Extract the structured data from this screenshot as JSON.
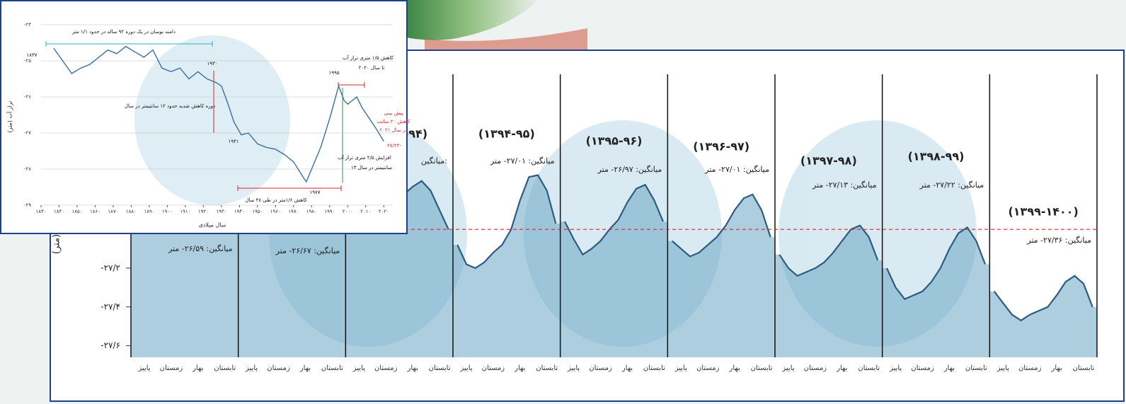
{
  "chart_data": [
    {
      "type": "line",
      "y_label": "(متر)",
      "ylim": [
        -27.66,
        -26.2
      ],
      "yticks": [
        {
          "value": -27.2,
          "label": "-۲۷/۲"
        },
        {
          "value": -27.4,
          "label": "-۲۷/۴"
        },
        {
          "value": -27.6,
          "label": "-۲۷/۶"
        }
      ],
      "reference_line": -27.0,
      "reference_color": "#d9262b",
      "color": "#2e5b80",
      "fill_color": "#6aa6c4",
      "categories": [
        "پاییز",
        "زمستان",
        "بهار",
        "تابستان",
        "پاییز",
        "زمستان",
        "بهار",
        "تابستان",
        "پاییز",
        "زمستان",
        "بهار",
        "تابستان",
        "پاییز",
        "زمستان",
        "بهار",
        "تابستان",
        "پاییز",
        "زمستان",
        "بهار",
        "تابستان",
        "پاییز",
        "زمستان",
        "بهار",
        "تابستان",
        "پاییز",
        "زمستان",
        "بهار",
        "تابستان",
        "پاییز",
        "زمستان",
        "بهار",
        "تابستان",
        "پاییز",
        "زمستان",
        "بهار",
        "تابستان"
      ],
      "panels": [
        {
          "title": null,
          "average_label": "میانگین: ۲۶/۵۹- متر",
          "values": [
            -26.62,
            -26.66,
            -26.7,
            -26.68,
            -26.62,
            -26.58,
            -26.52,
            -26.47,
            -26.45,
            -26.5,
            -26.58,
            -26.64
          ]
        },
        {
          "title": null,
          "average_label": "میانگین: ۲۶/۶۷- متر",
          "values": [
            -26.68,
            -26.74,
            -26.78,
            -26.76,
            -26.72,
            -26.66,
            -26.6,
            -26.56,
            -26.55,
            -26.6,
            -26.66,
            -26.72
          ]
        },
        {
          "title": "(۱۳۹۳-۹۴)",
          "average_label": "میانگین:",
          "values": [
            -26.95,
            -27.0,
            -27.02,
            -26.98,
            -26.92,
            -26.86,
            -26.82,
            -26.78,
            -26.75,
            -26.8,
            -26.9,
            -27.0
          ]
        },
        {
          "title": "(۱۳۹۴-۹۵)",
          "average_label": "میانگین: ۲۷/۰۱- متر",
          "values": [
            -27.08,
            -27.18,
            -27.2,
            -27.17,
            -27.12,
            -27.08,
            -27.0,
            -26.85,
            -26.73,
            -26.72,
            -26.8,
            -26.97
          ]
        },
        {
          "title": "(۱۳۹۵-۹۶)",
          "average_label": "میانگین: ۲۶/۹۷- متر",
          "values": [
            -26.96,
            -27.05,
            -27.13,
            -27.1,
            -27.06,
            -27.0,
            -26.95,
            -26.86,
            -26.79,
            -26.77,
            -26.85,
            -26.96
          ]
        },
        {
          "title": "(۱۳۹۶-۹۷)",
          "average_label": "میانگین: ۲۷/۰۱- متر",
          "values": [
            -27.06,
            -27.1,
            -27.14,
            -27.12,
            -27.08,
            -27.04,
            -26.98,
            -26.9,
            -26.84,
            -26.82,
            -26.9,
            -27.04
          ]
        },
        {
          "title": "(۱۳۹۷-۹۸)",
          "average_label": "میانگین: ۲۷/۱۳- متر",
          "values": [
            -27.13,
            -27.2,
            -27.24,
            -27.22,
            -27.2,
            -27.17,
            -27.12,
            -27.06,
            -27.0,
            -26.98,
            -27.04,
            -27.16
          ]
        },
        {
          "title": "(۱۳۹۸-۹۹)",
          "average_label": "میانگین: ۲۷/۲۲- متر",
          "values": [
            -27.2,
            -27.3,
            -27.36,
            -27.34,
            -27.32,
            -27.27,
            -27.2,
            -27.1,
            -27.02,
            -26.99,
            -27.06,
            -27.18
          ]
        },
        {
          "title": "(۱۳۹۹-۱۴۰۰)",
          "average_label": "میانگین: ۲۷/۳۶- متر",
          "values": [
            -27.32,
            -27.38,
            -27.44,
            -27.47,
            -27.44,
            -27.42,
            -27.4,
            -27.34,
            -27.27,
            -27.24,
            -27.28,
            -27.4
          ]
        }
      ]
    },
    {
      "type": "line",
      "x_label": "سال میلادی",
      "y_label": "تراز آب (متر)",
      "color": "#3a6fa0",
      "grid": true,
      "xlim": [
        1830,
        2025
      ],
      "ylim": [
        -29,
        -24
      ],
      "xticks": [
        {
          "value": 1830,
          "label": "۱۸۳۰"
        },
        {
          "value": 1840,
          "label": "۱۸۴۰"
        },
        {
          "value": 1850,
          "label": "۱۸۵۰"
        },
        {
          "value": 1860,
          "label": "۱۸۶۰"
        },
        {
          "value": 1870,
          "label": "۱۸۷۰"
        },
        {
          "value": 1880,
          "label": "۱۸۸۰"
        },
        {
          "value": 1890,
          "label": "۱۸۹۰"
        },
        {
          "value": 1900,
          "label": "۱۹۰۰"
        },
        {
          "value": 1910,
          "label": "۱۹۱۰"
        },
        {
          "value": 1920,
          "label": "۱۹۲۰"
        },
        {
          "value": 1930,
          "label": "۱۹۳۰"
        },
        {
          "value": 1940,
          "label": "۱۹۴۰"
        },
        {
          "value": 1950,
          "label": "۱۹۵۰"
        },
        {
          "value": 1960,
          "label": "۱۹۶۰"
        },
        {
          "value": 1970,
          "label": "۱۹۷۰"
        },
        {
          "value": 1980,
          "label": "۱۹۸۰"
        },
        {
          "value": 1990,
          "label": "۱۹۹۰"
        },
        {
          "value": 2000,
          "label": "۲۰۰۰"
        },
        {
          "value": 2010,
          "label": "۲۰۱۰"
        },
        {
          "value": 2020,
          "label": "۲۰۲۰"
        }
      ],
      "yticks": [
        {
          "value": -24,
          "label": "-۲۴"
        },
        {
          "value": -25,
          "label": "-۲۵"
        },
        {
          "value": -26,
          "label": "-۲۶"
        },
        {
          "value": -27,
          "label": "-۲۷"
        },
        {
          "value": -28,
          "label": "-۲۸"
        },
        {
          "value": -29,
          "label": "-۲۹"
        }
      ],
      "x": [
        1837,
        1842,
        1847,
        1852,
        1857,
        1862,
        1867,
        1872,
        1877,
        1882,
        1887,
        1892,
        1897,
        1902,
        1907,
        1912,
        1917,
        1922,
        1927,
        1930,
        1933,
        1937,
        1941,
        1945,
        1950,
        1955,
        1960,
        1965,
        1970,
        1975,
        1977,
        1980,
        1985,
        1990,
        1995,
        1998,
        2000,
        2005,
        2008,
        2012,
        2016,
        2020
      ],
      "values": [
        -24.65,
        -25.0,
        -25.35,
        -25.2,
        -25.1,
        -24.9,
        -24.7,
        -24.8,
        -24.6,
        -24.75,
        -24.9,
        -24.7,
        -25.2,
        -25.3,
        -25.2,
        -25.5,
        -25.3,
        -25.5,
        -25.6,
        -25.7,
        -26.1,
        -26.7,
        -27.05,
        -27.0,
        -27.3,
        -27.4,
        -27.45,
        -27.6,
        -27.8,
        -28.2,
        -28.35,
        -28.0,
        -27.4,
        -26.6,
        -25.7,
        -26.1,
        -26.2,
        -26.0,
        -26.3,
        -26.6,
        -26.9,
        -27.23
      ],
      "annotations": [
        "دامنه نوسان در یک دوره ۹۲ ساله در حدود ۱/۱ متر",
        "۱۸۳۷",
        "۱۹۳۰",
        "۱۹۴۱",
        "۱۹۷۷",
        "۱۹۹۵",
        "کاهش ۱/۵ متری تراز آب",
        "تا سال ۲۰۲۰",
        "دوره کاهش شدید حدود ۱۲ سانتیمتر در سال",
        "کاهش ۱/۶متر در طی ۳۸ سال",
        "افزایش ۲/۵ متری تراز آب",
        "۱۳ سانتیمتر در سال",
        "۲۷/۲۳-",
        "پیش بینی",
        "کاهش ۲۰ سانت",
        "در سال ۲۰۲۱"
      ]
    }
  ]
}
